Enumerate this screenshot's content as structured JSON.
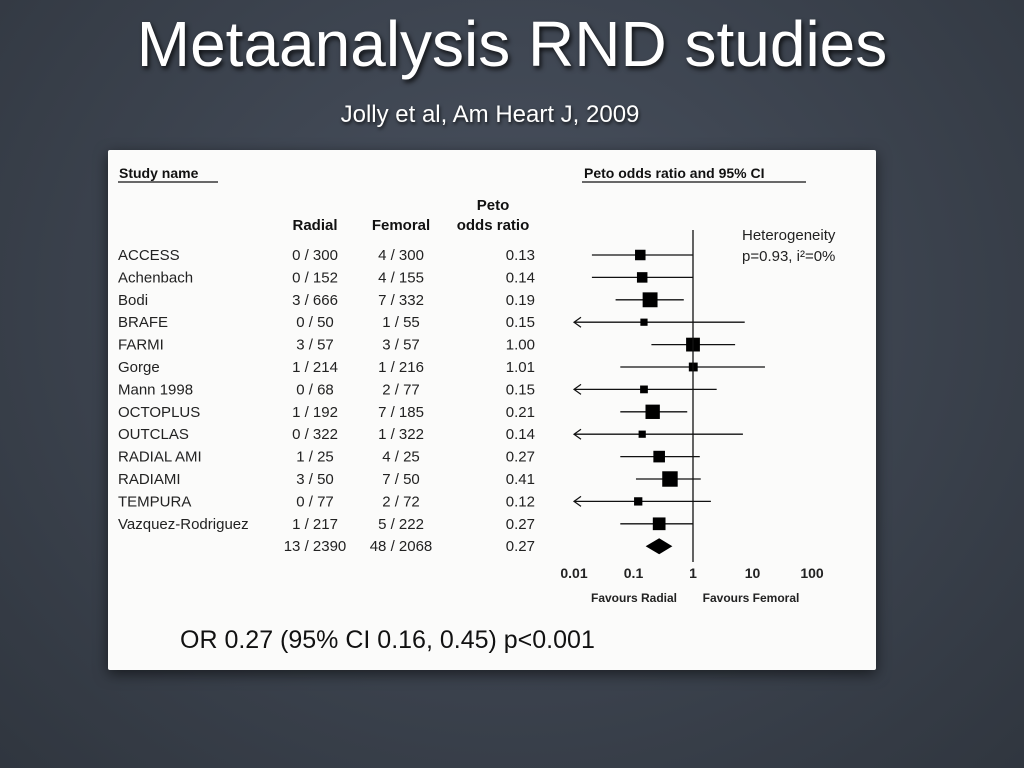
{
  "slide": {
    "title": "Metaanalysis RND studies",
    "subtitle": "Jolly et al, Am Heart J, 2009"
  },
  "table": {
    "study_header": "Study name",
    "plot_header": "Peto odds ratio and 95% CI",
    "col_radial": "Radial",
    "col_femoral": "Femoral",
    "col_or_line1": "Peto",
    "col_or_line2": "odds ratio",
    "heterogeneity_line1": "Heterogeneity",
    "heterogeneity_line2": "p=0.93, i²=0%",
    "favours_left": "Favours Radial",
    "favours_right": "Favours Femoral",
    "result": "OR 0.27 (95% CI 0.16, 0.45) p<0.001"
  },
  "chart_data": {
    "type": "forest",
    "scale": "log",
    "xlim": [
      0.01,
      100
    ],
    "x_ticks": [
      "0.01",
      "0.1",
      "1",
      "10",
      "100"
    ],
    "x_tick_values": [
      0.01,
      0.1,
      1,
      10,
      100
    ],
    "reference_line": 1,
    "studies": [
      {
        "name": "ACCESS",
        "radial": "0 / 300",
        "femoral": "4 / 300",
        "or_label": "0.13",
        "or": 0.13,
        "lo": 0.02,
        "hi": 0.98,
        "weight": 0.5,
        "arrow_left": false
      },
      {
        "name": "Achenbach",
        "radial": "0 / 152",
        "femoral": "4 / 155",
        "or_label": "0.14",
        "or": 0.14,
        "lo": 0.02,
        "hi": 0.99,
        "weight": 0.5,
        "arrow_left": false
      },
      {
        "name": "Bodi",
        "radial": "3 / 666",
        "femoral": "7 / 332",
        "or_label": "0.19",
        "or": 0.19,
        "lo": 0.05,
        "hi": 0.7,
        "weight": 0.9,
        "arrow_left": false
      },
      {
        "name": "BRAFE",
        "radial": "0 / 50",
        "femoral": "1 / 55",
        "or_label": "0.15",
        "or": 0.15,
        "lo": 0.003,
        "hi": 7.4,
        "weight": 0.2,
        "arrow_left": true
      },
      {
        "name": "FARMI",
        "radial": "3 / 57",
        "femoral": "3 / 57",
        "or_label": "1.00",
        "or": 1.0,
        "lo": 0.2,
        "hi": 5.1,
        "weight": 0.8,
        "arrow_left": false
      },
      {
        "name": "Gorge",
        "radial": "1 / 214",
        "femoral": "1 / 216",
        "or_label": "1.01",
        "or": 1.01,
        "lo": 0.06,
        "hi": 16.2,
        "weight": 0.35,
        "arrow_left": false
      },
      {
        "name": "Mann 1998",
        "radial": "0 / 68",
        "femoral": "2 / 77",
        "or_label": "0.15",
        "or": 0.15,
        "lo": 0.003,
        "hi": 2.5,
        "weight": 0.25,
        "arrow_left": true
      },
      {
        "name": "OCTOPLUS",
        "radial": "1 / 192",
        "femoral": "7 / 185",
        "or_label": "0.21",
        "or": 0.21,
        "lo": 0.06,
        "hi": 0.8,
        "weight": 0.85,
        "arrow_left": false
      },
      {
        "name": "OUTCLAS",
        "radial": "0 / 322",
        "femoral": "1 / 322",
        "or_label": "0.14",
        "or": 0.14,
        "lo": 0.003,
        "hi": 6.9,
        "weight": 0.2,
        "arrow_left": true
      },
      {
        "name": "RADIAL AMI",
        "radial": "1 / 25",
        "femoral": "4 / 25",
        "or_label": "0.27",
        "or": 0.27,
        "lo": 0.06,
        "hi": 1.3,
        "weight": 0.6,
        "arrow_left": false
      },
      {
        "name": "RADIAMI",
        "radial": "3 / 50",
        "femoral": "7 / 50",
        "or_label": "0.41",
        "or": 0.41,
        "lo": 0.11,
        "hi": 1.35,
        "weight": 0.95,
        "arrow_left": false
      },
      {
        "name": "TEMPURA",
        "radial": "0 / 77",
        "femoral": "2 / 72",
        "or_label": "0.12",
        "or": 0.12,
        "lo": 0.004,
        "hi": 2.0,
        "weight": 0.3,
        "arrow_left": true
      },
      {
        "name": "Vazquez-Rodriguez",
        "radial": "1 / 217",
        "femoral": "5 / 222",
        "or_label": "0.27",
        "or": 0.27,
        "lo": 0.06,
        "hi": 1.0,
        "weight": 0.7,
        "arrow_left": false
      }
    ],
    "overall": {
      "radial": "13 / 2390",
      "femoral": "48 / 2068",
      "or_label": "0.27",
      "or": 0.27,
      "lo": 0.16,
      "hi": 0.45
    }
  }
}
